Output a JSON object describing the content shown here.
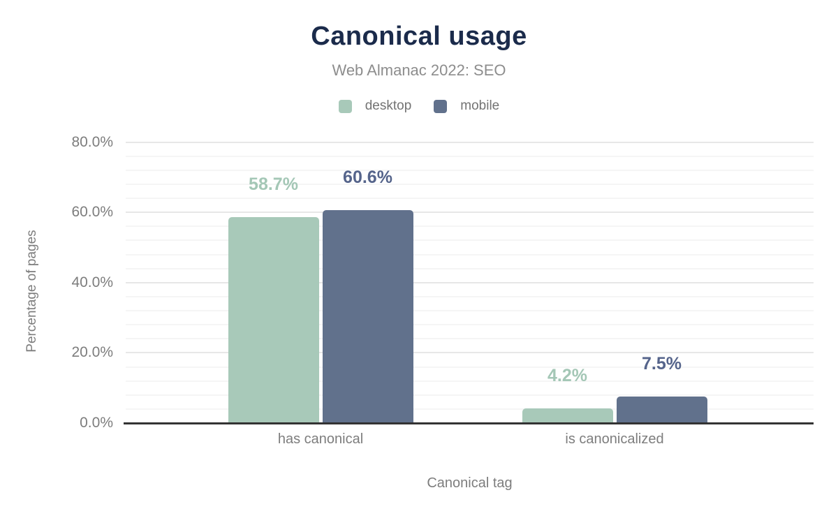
{
  "chart_data": {
    "type": "bar",
    "title": "Canonical usage",
    "subtitle": "Web Almanac 2022: SEO",
    "xlabel": "Canonical tag",
    "ylabel": "Percentage of pages",
    "categories": [
      "has canonical",
      "is canonicalized"
    ],
    "series": [
      {
        "name": "desktop",
        "values": [
          58.7,
          4.2
        ],
        "labels": [
          "58.7%",
          "4.2%"
        ],
        "color": "#a8c9b9",
        "label_color": "#a4c7b6"
      },
      {
        "name": "mobile",
        "values": [
          60.6,
          7.5
        ],
        "labels": [
          "60.6%",
          "7.5%"
        ],
        "color": "#61718c",
        "label_color": "#55648b"
      }
    ],
    "y_axis": {
      "min": 0,
      "max": 80,
      "major_step": 20,
      "minor_step": 4,
      "tick_values": [
        0,
        20,
        40,
        60,
        80
      ],
      "ticks": [
        "0.0%",
        "20.0%",
        "40.0%",
        "60.0%",
        "80.0%"
      ]
    },
    "legend_position": "top",
    "grid": true,
    "colors": {
      "background": "#ffffff",
      "title": "#1b2b4b",
      "subtitle": "#8d8d8d",
      "axis_text": "#7d7d7d",
      "legend_text": "#737373",
      "axis_line": "#333333",
      "grid_major": "#e7e7e7",
      "grid_minor": "#f5f5f5"
    }
  }
}
